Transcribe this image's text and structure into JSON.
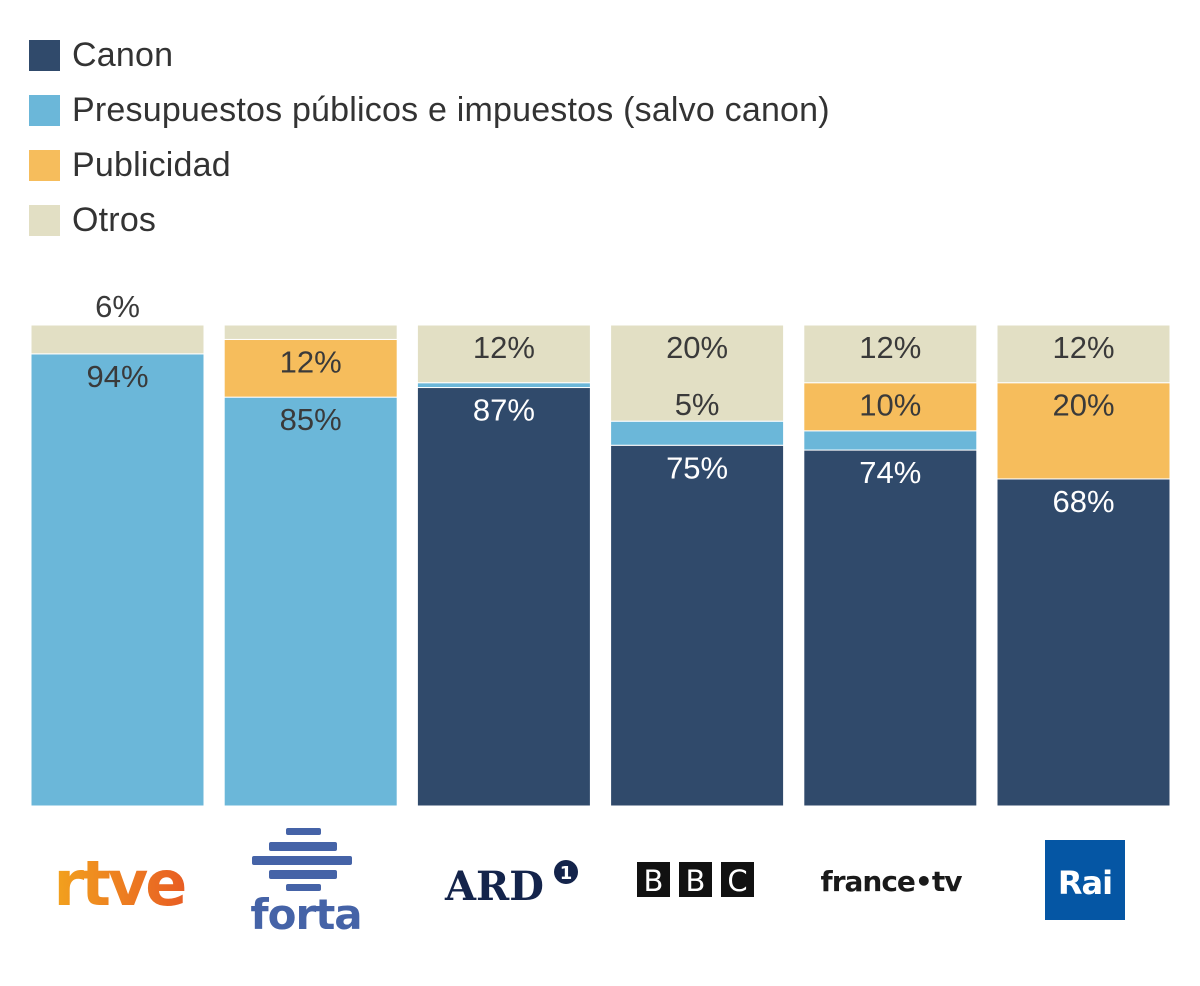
{
  "chart_data": {
    "type": "bar",
    "stacked": true,
    "percent": true,
    "title": "",
    "xlabel": "",
    "ylabel": "",
    "ylim": [
      0,
      100
    ],
    "grid": false,
    "legend_position": "top-left",
    "categories": [
      "rtve",
      "forta",
      "ARD",
      "BBC",
      "france.tv",
      "Rai"
    ],
    "series": [
      {
        "name": "Canon",
        "color": "#304a6b",
        "values": [
          0,
          0,
          87,
          75,
          74,
          68
        ]
      },
      {
        "name": "Presupuestos públicos e impuestos (salvo canon)",
        "color": "#6bb7d9",
        "values": [
          94,
          85,
          1,
          5,
          4,
          0
        ]
      },
      {
        "name": "Publicidad",
        "color": "#f6bd5c",
        "values": [
          0,
          12,
          0,
          0,
          10,
          20
        ]
      },
      {
        "name": "Otros",
        "color": "#e2dfc4",
        "values": [
          6,
          3,
          12,
          20,
          12,
          12
        ]
      }
    ],
    "data_labels": [
      [
        {
          "text": "6%",
          "series": "Otros",
          "pos": "above"
        },
        {
          "text": "94%",
          "series": "Presupuestos públicos e impuestos (salvo canon)"
        }
      ],
      [
        {
          "text": "12%",
          "series": "Publicidad"
        },
        {
          "text": "85%",
          "series": "Presupuestos públicos e impuestos (salvo canon)"
        }
      ],
      [
        {
          "text": "12%",
          "series": "Otros"
        },
        {
          "text": "87%",
          "series": "Canon"
        }
      ],
      [
        {
          "text": "20%",
          "series": "Otros"
        },
        {
          "text": "5%",
          "series": "Presupuestos públicos e impuestos (salvo canon)",
          "pos": "above-segment"
        },
        {
          "text": "75%",
          "series": "Canon"
        }
      ],
      [
        {
          "text": "12%",
          "series": "Otros"
        },
        {
          "text": "10%",
          "series": "Publicidad"
        },
        {
          "text": "74%",
          "series": "Canon"
        }
      ],
      [
        {
          "text": "12%",
          "series": "Otros"
        },
        {
          "text": "20%",
          "series": "Publicidad"
        },
        {
          "text": "68%",
          "series": "Canon"
        }
      ]
    ]
  },
  "legend": [
    {
      "label": "Canon",
      "color": "#304a6b"
    },
    {
      "label": "Presupuestos públicos e impuestos (salvo canon)",
      "color": "#6bb7d9"
    },
    {
      "label": "Publicidad",
      "color": "#f6bd5c"
    },
    {
      "label": "Otros",
      "color": "#e2dfc4"
    }
  ],
  "logos": [
    {
      "name": "rtve",
      "text": "rtve"
    },
    {
      "name": "forta",
      "text": "forta"
    },
    {
      "name": "ard",
      "text": "ARD",
      "badge": "1"
    },
    {
      "name": "bbc",
      "letters": [
        "B",
        "B",
        "C"
      ]
    },
    {
      "name": "france-tv",
      "text": "france•tv"
    },
    {
      "name": "rai",
      "text": "Rai"
    }
  ]
}
